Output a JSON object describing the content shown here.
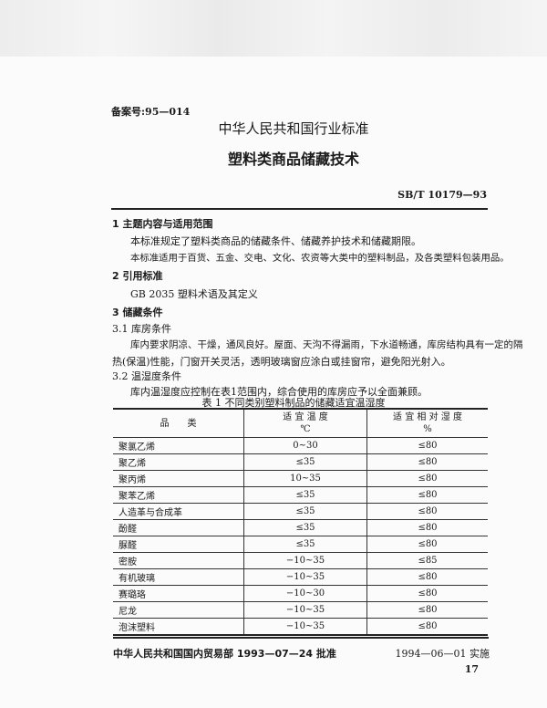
{
  "record_no": "备案号:95—014",
  "header": "中华人民共和国行业标准",
  "title": "塑料类商品储藏技术",
  "code": "SB/T 10179—93",
  "sections": {
    "s1_title": "1   主题内容与适用范围",
    "s1_p1": "本标准规定了塑料类商品的储藏条件、储藏养护技术和储藏期限。",
    "s1_p2": "本标准适用于百货、五金、交电、文化、农资等大类中的塑料制品，及各类塑料包装用品。",
    "s2_title": "2   引用标准",
    "s2_ref": "GB 2035   塑料术语及其定义",
    "s3_title": "3   储藏条件",
    "s31_title": "3.1   库房条件",
    "s31_p1": "库内要求阴凉、干燥，通风良好。屋面、天沟不得漏雨，下水道畅通，库房结构具有一定的隔",
    "s31_p2": "热(保温)性能，门窗开关灵活，透明玻璃窗应涂白或挂窗帘，避免阳光射入。",
    "s32_title": "3.2   温湿度条件",
    "s32_p1": "库内温湿度应控制在表1范围内，综合使用的库房应予以全面兼顾。"
  },
  "table": {
    "caption": "表 1   不同类别塑料制品的储藏适宜温湿度",
    "headers": [
      "品　　类",
      "适 宜 温 度",
      "℃",
      "适 宜 相 对 湿 度",
      "%"
    ],
    "rows": [
      [
        "聚氯乙烯",
        "0~30",
        "≤80"
      ],
      [
        "聚乙烯",
        "≤35",
        "≤80"
      ],
      [
        "聚丙烯",
        "10~35",
        "≤80"
      ],
      [
        "聚苯乙烯",
        "≤35",
        "≤80"
      ],
      [
        "人造革与合成革",
        "≤35",
        "≤80"
      ],
      [
        "酚醛",
        "≤35",
        "≤80"
      ],
      [
        "脲醛",
        "≤35",
        "≤80"
      ],
      [
        "密胺",
        "−10~35",
        "≤85"
      ],
      [
        "有机玻璃",
        "−10~35",
        "≤80"
      ],
      [
        "赛璐珞",
        "−10~30",
        "≤80"
      ],
      [
        "尼龙",
        "−10~35",
        "≤80"
      ],
      [
        "泡沫塑料",
        "−10~35",
        "≤80"
      ]
    ]
  },
  "footer": {
    "approval": "中华人民共和国国内贸易部 1993—07—24 批准",
    "effective": "1994—06—01 实施",
    "page": "17"
  }
}
